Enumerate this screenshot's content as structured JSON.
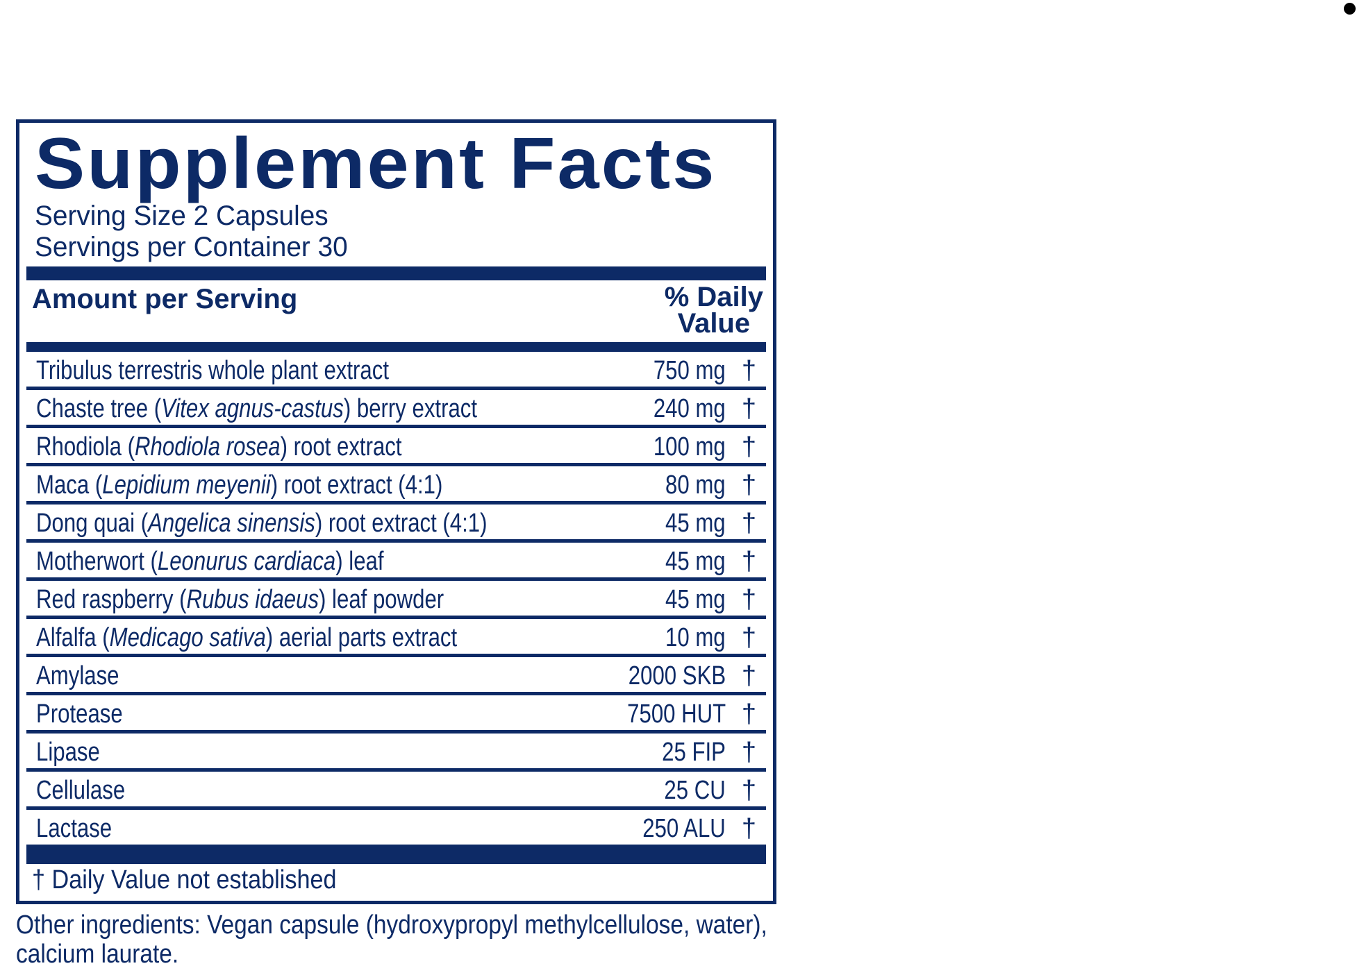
{
  "label": {
    "title": "Supplement Facts",
    "serving_size": "Serving Size 2 Capsules",
    "servings_per_container": "Servings per Container 30",
    "header_left": "Amount per Serving",
    "header_right_line1": "% Daily",
    "header_right_line2": "Value",
    "rows": [
      {
        "pre": "Tribulus terrestris whole plant extract",
        "italic": "",
        "post": "",
        "amount": "750 mg",
        "dv": "†"
      },
      {
        "pre": "Chaste tree (",
        "italic": "Vitex agnus-castus",
        "post": ") berry extract",
        "amount": "240 mg",
        "dv": "†"
      },
      {
        "pre": "Rhodiola (",
        "italic": "Rhodiola rosea",
        "post": ") root extract",
        "amount": "100 mg",
        "dv": "†"
      },
      {
        "pre": "Maca (",
        "italic": "Lepidium meyenii",
        "post": ") root extract (4:1)",
        "amount": "80 mg",
        "dv": "†"
      },
      {
        "pre": "Dong quai (",
        "italic": "Angelica sinensis",
        "post": ") root extract (4:1)",
        "amount": "45 mg",
        "dv": "†"
      },
      {
        "pre": "Motherwort (",
        "italic": "Leonurus cardiaca",
        "post": ") leaf",
        "amount": "45 mg",
        "dv": "†"
      },
      {
        "pre": "Red raspberry (",
        "italic": "Rubus idaeus",
        "post": ") leaf powder",
        "amount": "45 mg",
        "dv": "†"
      },
      {
        "pre": "Alfalfa (",
        "italic": "Medicago sativa",
        "post": ") aerial parts extract",
        "amount": "10 mg",
        "dv": "†"
      },
      {
        "pre": "Amylase",
        "italic": "",
        "post": "",
        "amount": "2000 SKB",
        "dv": "†"
      },
      {
        "pre": "Protease",
        "italic": "",
        "post": "",
        "amount": "7500 HUT",
        "dv": "†"
      },
      {
        "pre": "Lipase",
        "italic": "",
        "post": "",
        "amount": "25 FIP",
        "dv": "†"
      },
      {
        "pre": "Cellulase",
        "italic": "",
        "post": "",
        "amount": "25 CU",
        "dv": "†"
      },
      {
        "pre": "Lactase",
        "italic": "",
        "post": "",
        "amount": "250 ALU",
        "dv": "†"
      }
    ],
    "footnote": "† Daily Value not established"
  },
  "other_ingredients": "Other ingredients: Vegan capsule (hydroxypropyl methylcellulose, water), calcium laurate.",
  "colors": {
    "primary": "#0d2a66",
    "background": "#ffffff"
  }
}
